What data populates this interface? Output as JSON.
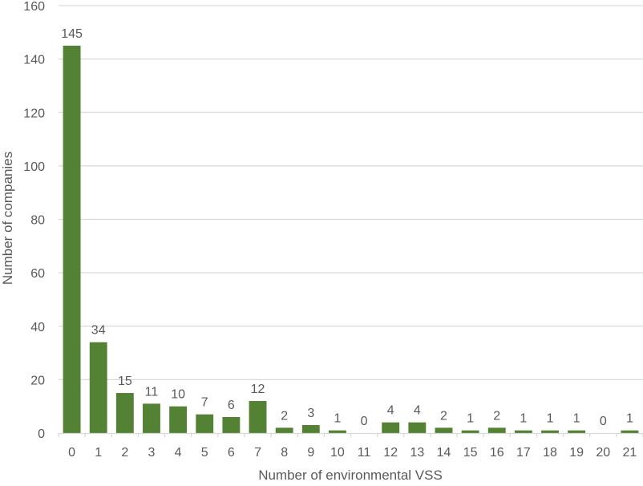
{
  "chart_data": {
    "type": "bar",
    "title": "",
    "xlabel": "Number of environmental VSS",
    "ylabel": "Number of companies",
    "categories": [
      "0",
      "1",
      "2",
      "3",
      "4",
      "5",
      "6",
      "7",
      "8",
      "9",
      "10",
      "11",
      "12",
      "13",
      "14",
      "15",
      "16",
      "17",
      "18",
      "19",
      "20",
      "21"
    ],
    "values": [
      145,
      34,
      15,
      11,
      10,
      7,
      6,
      12,
      2,
      3,
      1,
      0,
      4,
      4,
      2,
      1,
      2,
      1,
      1,
      1,
      0,
      1
    ],
    "ylim": [
      0,
      160
    ],
    "yticks": [
      0,
      20,
      40,
      60,
      80,
      100,
      120,
      140,
      160
    ],
    "grid": true,
    "legend": "none",
    "data_labels": true,
    "bar_color": "#548235",
    "grid_color": "#d9d9d9"
  }
}
